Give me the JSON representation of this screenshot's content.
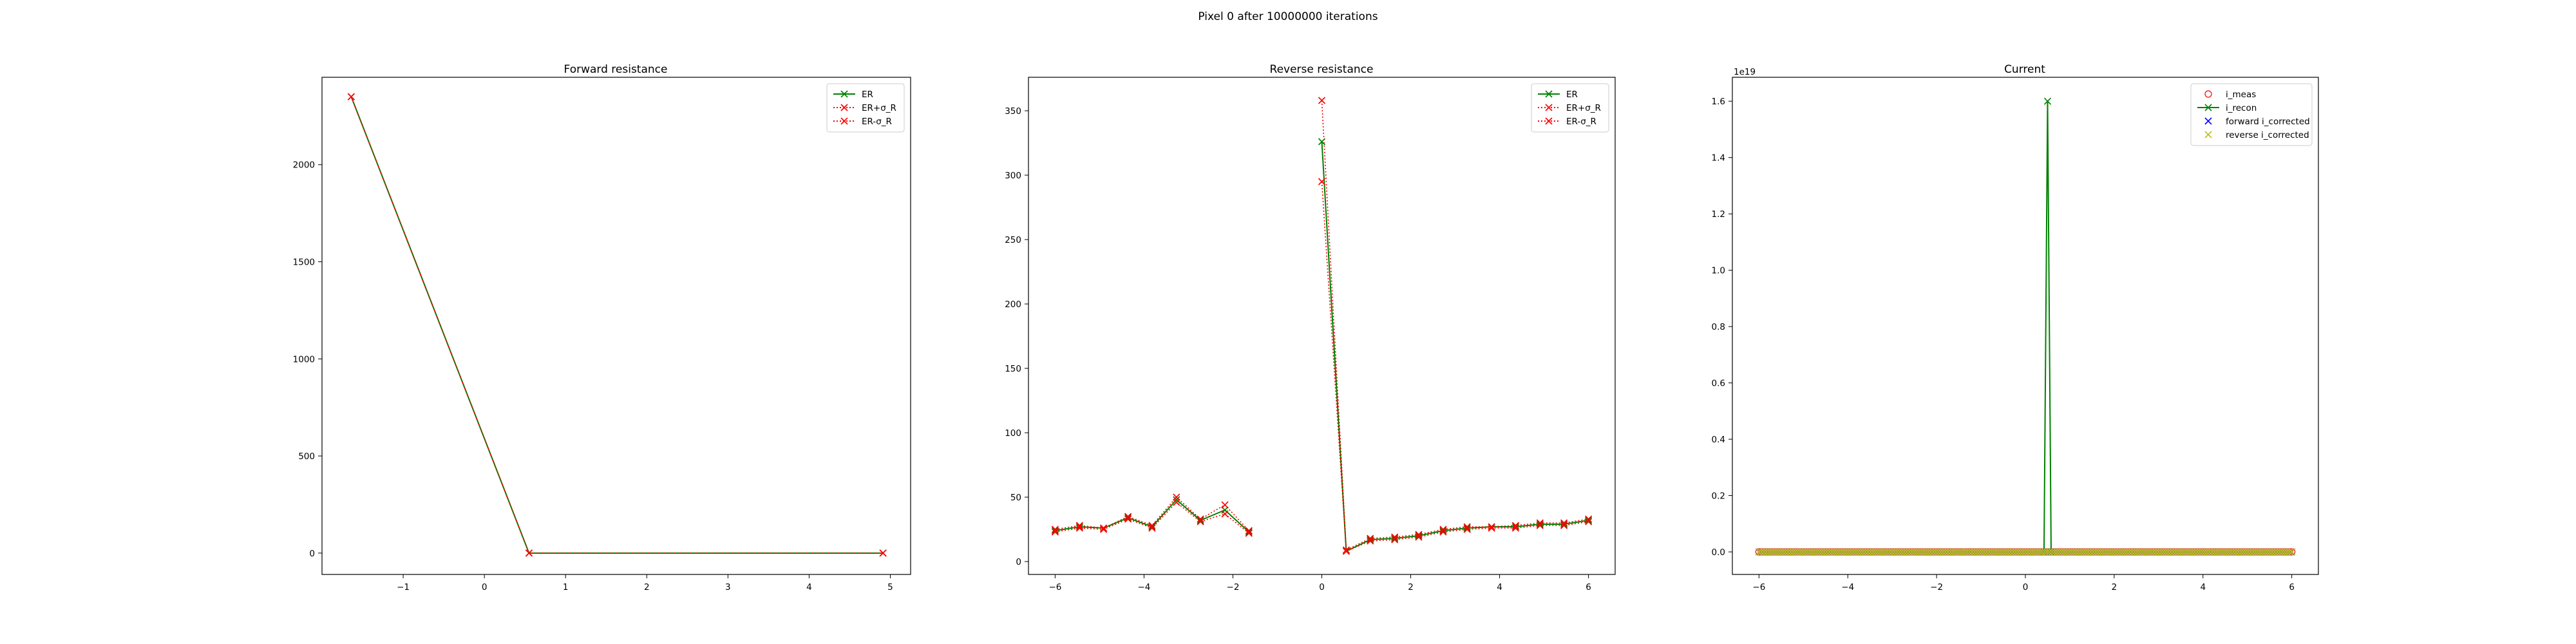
{
  "figure": {
    "title": "Pixel 0 after 10000000 iterations"
  },
  "chart_data": [
    {
      "type": "line",
      "title": "Forward resistance",
      "xlabel": "",
      "ylabel": "",
      "xlim": [
        -2.0,
        5.25
      ],
      "ylim": [
        -110,
        2450
      ],
      "xticks": [
        -1,
        0,
        1,
        2,
        3,
        4,
        5
      ],
      "yticks": [
        0,
        500,
        1000,
        1500,
        2000
      ],
      "grid": false,
      "legend_loc": "upper right",
      "legend": [
        "ER",
        "ER+σ_R",
        "ER-σ_R"
      ],
      "series": [
        {
          "name": "ER",
          "color": "#008000",
          "linestyle": "solid",
          "marker": "x",
          "x": [
            -1.64,
            0.55,
            4.91
          ],
          "y": [
            2350,
            0,
            0
          ]
        },
        {
          "name": "ER+σ_R",
          "color": "#ff0000",
          "linestyle": "dotted",
          "marker": "x",
          "x": [
            -1.64,
            0.55,
            4.91
          ],
          "y": [
            2350,
            0,
            0
          ]
        },
        {
          "name": "ER-σ_R",
          "color": "#ff0000",
          "linestyle": "dotted",
          "marker": "x",
          "x": [
            -1.64,
            0.55,
            4.91
          ],
          "y": [
            2350,
            0,
            0
          ]
        }
      ]
    },
    {
      "type": "line",
      "title": "Reverse resistance",
      "xlabel": "",
      "ylabel": "",
      "xlim": [
        -6.6,
        6.6
      ],
      "ylim": [
        -10,
        376
      ],
      "xticks": [
        -6,
        -4,
        -2,
        0,
        2,
        4,
        6
      ],
      "yticks": [
        0,
        50,
        100,
        150,
        200,
        250,
        300,
        350
      ],
      "grid": false,
      "legend_loc": "upper right",
      "legend": [
        "ER",
        "ER+σ_R",
        "ER-σ_R"
      ],
      "series": [
        {
          "name": "ER",
          "color": "#008000",
          "linestyle": "solid",
          "marker": "x",
          "x": [
            -6.0,
            -5.45,
            -4.91,
            -4.36,
            -3.82,
            -3.27,
            -2.73,
            -2.18,
            -1.64,
            null,
            0.0,
            0.55,
            1.09,
            1.64,
            2.18,
            2.73,
            3.27,
            3.82,
            4.36,
            4.91,
            5.45,
            6.0
          ],
          "y": [
            24,
            27,
            26,
            34,
            27,
            48,
            32,
            40,
            23,
            null,
            326,
            8,
            17,
            18,
            20,
            24,
            26,
            27,
            27,
            29,
            29,
            32
          ]
        },
        {
          "name": "ER+σ_R",
          "color": "#ff0000",
          "linestyle": "dotted",
          "marker": "x",
          "x": [
            -6.0,
            -5.45,
            -4.91,
            -4.36,
            -3.82,
            -3.27,
            -2.73,
            -2.18,
            -1.64,
            null,
            0.0,
            0.55,
            1.09,
            1.64,
            2.18,
            2.73,
            3.27,
            3.82,
            4.36,
            4.91,
            5.45,
            6.0
          ],
          "y": [
            25,
            28,
            26,
            35,
            28,
            50,
            33,
            44,
            24,
            null,
            358,
            9,
            18,
            19,
            21,
            25,
            27,
            27,
            28,
            30,
            30,
            33
          ]
        },
        {
          "name": "ER-σ_R",
          "color": "#ff0000",
          "linestyle": "dotted",
          "marker": "x",
          "x": [
            -6.0,
            -5.45,
            -4.91,
            -4.36,
            -3.82,
            -3.27,
            -2.73,
            -2.18,
            -1.64,
            null,
            0.0,
            0.55,
            1.09,
            1.64,
            2.18,
            2.73,
            3.27,
            3.82,
            4.36,
            4.91,
            5.45,
            6.0
          ],
          "y": [
            23,
            26,
            25,
            33,
            26,
            46,
            31,
            37,
            22,
            null,
            295,
            8,
            16,
            17,
            19,
            23,
            25,
            26,
            26,
            28,
            28,
            31
          ]
        }
      ]
    },
    {
      "type": "line",
      "title": "Current",
      "xlabel": "",
      "ylabel": "",
      "y_offset_text": "1e19",
      "xlim": [
        -6.6,
        6.6
      ],
      "ylim": [
        -0.08,
        1.685
      ],
      "xticks": [
        -6,
        -4,
        -2,
        0,
        2,
        4,
        6
      ],
      "yticks": [
        0.0,
        0.2,
        0.4,
        0.6,
        0.8,
        1.0,
        1.2,
        1.4,
        1.6
      ],
      "grid": false,
      "legend_loc": "upper right",
      "legend": [
        "i_meas",
        "i_recon",
        "forward i_corrected",
        "reverse i_corrected"
      ],
      "series": [
        {
          "name": "i_meas",
          "color": "#ff0000",
          "linestyle": "none",
          "marker": "o",
          "x_range": [
            -6,
            6,
            221
          ],
          "y_const": 0
        },
        {
          "name": "i_recon",
          "color": "#008000",
          "linestyle": "solid",
          "marker": "x",
          "x": [
            -6.0,
            0.42,
            0.5,
            0.58,
            6.0
          ],
          "y": [
            0,
            0,
            1.6,
            0,
            0
          ]
        },
        {
          "name": "forward i_corrected",
          "color": "#0000ff",
          "linestyle": "none",
          "marker": "x",
          "x_range": [
            -6,
            6,
            221
          ],
          "y_const": 0
        },
        {
          "name": "reverse i_corrected",
          "color": "#bcbd22",
          "linestyle": "none",
          "marker": "x",
          "x_range": [
            -6,
            6,
            221
          ],
          "y_const": 0
        }
      ]
    }
  ]
}
